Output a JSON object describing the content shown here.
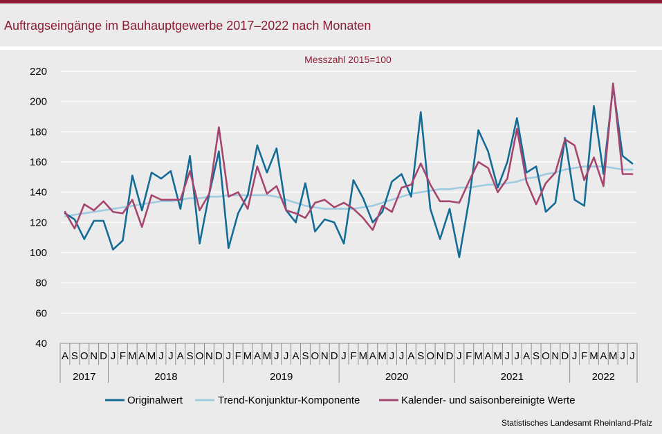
{
  "title": "Auftragseingänge im Bauhauptgewerbe 2017–2022 nach Monaten",
  "source": "Statistisches Landesamt Rheinland-Pfalz",
  "colors": {
    "accent": "#8b1c34",
    "original": "#136b96",
    "trend": "#9fcbe0",
    "seasonal": "#a6466f"
  },
  "chart_data": {
    "type": "line",
    "title": "Auftragseingänge im Bauhauptgewerbe 2017–2022 nach Monaten",
    "subtitle": "Messzahl 2015=100",
    "xlabel": "",
    "ylabel": "",
    "ylim": [
      40,
      220
    ],
    "yticks": [
      "40",
      "60",
      "80",
      "100",
      "120",
      "140",
      "160",
      "180",
      "200",
      "220"
    ],
    "grid": true,
    "legend_position": "bottom",
    "months": [
      "A",
      "S",
      "O",
      "N",
      "D",
      "J",
      "F",
      "M",
      "A",
      "M",
      "J",
      "J",
      "A",
      "S",
      "O",
      "N",
      "D",
      "J",
      "F",
      "M",
      "A",
      "M",
      "J",
      "J",
      "A",
      "S",
      "O",
      "N",
      "D",
      "J",
      "F",
      "M",
      "A",
      "M",
      "J",
      "J",
      "A",
      "S",
      "O",
      "N",
      "D",
      "J",
      "F",
      "M",
      "A",
      "M",
      "J",
      "J",
      "A",
      "S",
      "O",
      "N",
      "D",
      "J",
      "F",
      "M",
      "A",
      "M",
      "J",
      "J"
    ],
    "years": [
      {
        "label": "2017",
        "start": 0,
        "count": 5
      },
      {
        "label": "2018",
        "start": 5,
        "count": 12
      },
      {
        "label": "2019",
        "start": 17,
        "count": 12
      },
      {
        "label": "2020",
        "start": 29,
        "count": 12
      },
      {
        "label": "2021",
        "start": 41,
        "count": 12
      },
      {
        "label": "2022",
        "start": 53,
        "count": 7
      }
    ],
    "series": [
      {
        "name": "Originalwert",
        "color": "#136b96",
        "width": 2.6,
        "values": [
          126,
          122,
          109,
          121,
          121,
          102,
          108,
          151,
          128,
          153,
          149,
          154,
          129,
          164,
          106,
          139,
          167,
          103,
          126,
          138,
          171,
          153,
          169,
          128,
          120,
          146,
          114,
          122,
          120,
          106,
          148,
          136,
          120,
          127,
          147,
          152,
          137,
          193,
          129,
          109,
          129,
          97,
          134,
          181,
          167,
          143,
          160,
          189,
          153,
          157,
          127,
          133,
          176,
          135,
          131,
          197,
          152,
          210,
          164,
          159
        ]
      },
      {
        "name": "Trend-Konjunktur-Komponente",
        "color": "#9fcbe0",
        "width": 2.6,
        "values": [
          124,
          125,
          126,
          127,
          128,
          129,
          130,
          131,
          132,
          133,
          134,
          134,
          135,
          136,
          136,
          137,
          137,
          138,
          138,
          138,
          138,
          138,
          137,
          135,
          133,
          131,
          130,
          129,
          129,
          129,
          129,
          130,
          131,
          133,
          135,
          137,
          139,
          140,
          141,
          142,
          142,
          143,
          143,
          144,
          145,
          145,
          146,
          147,
          149,
          150,
          152,
          153,
          155,
          156,
          157,
          157,
          157,
          156,
          155,
          155
        ]
      },
      {
        "name": "Kalender- und saisonbereinigte Werte",
        "color": "#a6466f",
        "width": 2.6,
        "values": [
          127,
          116,
          132,
          128,
          134,
          127,
          126,
          135,
          117,
          138,
          135,
          135,
          135,
          154,
          128,
          139,
          183,
          137,
          140,
          129,
          157,
          139,
          144,
          128,
          126,
          123,
          133,
          135,
          130,
          133,
          129,
          123,
          115,
          131,
          127,
          143,
          145,
          159,
          145,
          134,
          134,
          133,
          147,
          160,
          156,
          140,
          149,
          182,
          147,
          132,
          146,
          153,
          175,
          171,
          148,
          163,
          144,
          212,
          152,
          152
        ]
      }
    ]
  }
}
